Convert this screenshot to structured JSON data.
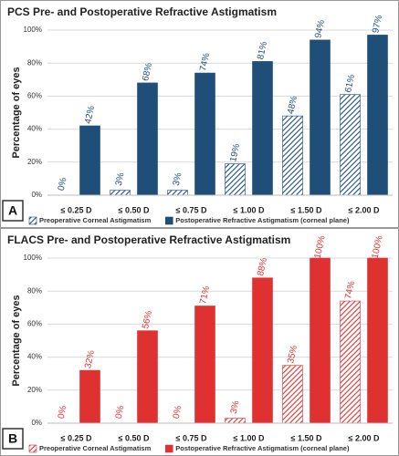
{
  "chart_data": [
    {
      "type": "bar",
      "panel_label": "A",
      "title": "PCS Pre- and Postoperative Refractive Astigmatism",
      "y_label": "Percentage of eyes",
      "categories": [
        "≤ 0.25 D",
        "≤ 0.50 D",
        "≤ 0.75 D",
        "≤ 1.00 D",
        "≤ 1.50 D",
        "≤ 2.00 D"
      ],
      "series": [
        {
          "name": "Preoperative Corneal Astigmatism",
          "color": "#1f4e79",
          "pattern": "hatch",
          "values": [
            0,
            3,
            3,
            19,
            48,
            61
          ],
          "value_labels": [
            "0%",
            "3%",
            "3%",
            "19%",
            "48%",
            "61%"
          ]
        },
        {
          "name": "Postoperative Refractive Astigmatism (corneal plane)",
          "color": "#1f4e79",
          "pattern": "solid",
          "values": [
            42,
            68,
            74,
            81,
            94,
            97
          ],
          "value_labels": [
            "42%",
            "68%",
            "74%",
            "81%",
            "94%",
            "97%"
          ]
        }
      ],
      "ylim": [
        0,
        100
      ],
      "yticks": [
        {
          "value": 0,
          "label": "0%"
        },
        {
          "value": 20,
          "label": "20%"
        },
        {
          "value": 40,
          "label": "40%"
        },
        {
          "value": 60,
          "label": "60%"
        },
        {
          "value": 80,
          "label": "80%"
        },
        {
          "value": 100,
          "label": "100%"
        }
      ],
      "grid": true,
      "legend": "bottom"
    },
    {
      "type": "bar",
      "panel_label": "B",
      "title": "FLACS Pre- and Postoperative Refractive Astigmatism",
      "y_label": "Percentage of eyes",
      "categories": [
        "≤ 0.25 D",
        "≤ 0.50 D",
        "≤ 0.75 D",
        "≤ 1.00 D",
        "≤ 1.50 D",
        "≤ 2.00 D"
      ],
      "series": [
        {
          "name": "Preoperative Corneal Astigmatism",
          "color": "#e03131",
          "pattern": "hatch",
          "values": [
            0,
            0,
            0,
            3,
            35,
            74
          ],
          "value_labels": [
            "0%",
            "0%",
            "0%",
            "3%",
            "35%",
            "74%"
          ]
        },
        {
          "name": "Postoperative Refractive Astigmatism (corneal plane)",
          "color": "#e03131",
          "pattern": "solid",
          "values": [
            32,
            56,
            71,
            88,
            100,
            100
          ],
          "value_labels": [
            "32%",
            "56%",
            "71%",
            "88%",
            "100%",
            "100%"
          ]
        }
      ],
      "ylim": [
        0,
        100
      ],
      "yticks": [
        {
          "value": 0,
          "label": "0%"
        },
        {
          "value": 20,
          "label": "20%"
        },
        {
          "value": 40,
          "label": "40%"
        },
        {
          "value": 60,
          "label": "60%"
        },
        {
          "value": 80,
          "label": "80%"
        },
        {
          "value": 100,
          "label": "100%"
        }
      ],
      "grid": true,
      "legend": "bottom"
    }
  ]
}
